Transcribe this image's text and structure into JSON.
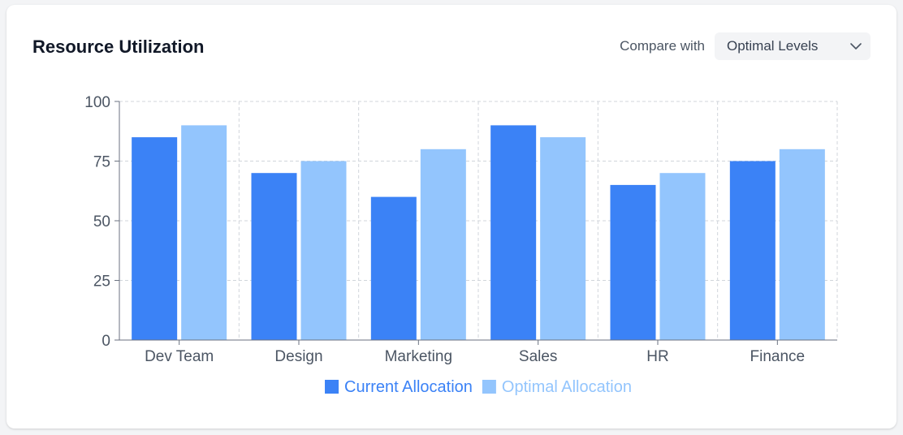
{
  "header": {
    "title": "Resource Utilization",
    "compare_label": "Compare with",
    "compare_value": "Optimal Levels"
  },
  "chart_data": {
    "type": "bar",
    "categories": [
      "Dev Team",
      "Design",
      "Marketing",
      "Sales",
      "HR",
      "Finance"
    ],
    "series": [
      {
        "name": "Current Allocation",
        "values": [
          85,
          70,
          60,
          90,
          65,
          75
        ],
        "color": "#3b82f6"
      },
      {
        "name": "Optimal Allocation",
        "values": [
          90,
          75,
          80,
          85,
          70,
          80
        ],
        "color": "#93c5fd"
      }
    ],
    "yticks": [
      0,
      25,
      50,
      75,
      100
    ],
    "ylim": [
      0,
      100
    ],
    "grid": true,
    "legend": "bottom-center"
  }
}
